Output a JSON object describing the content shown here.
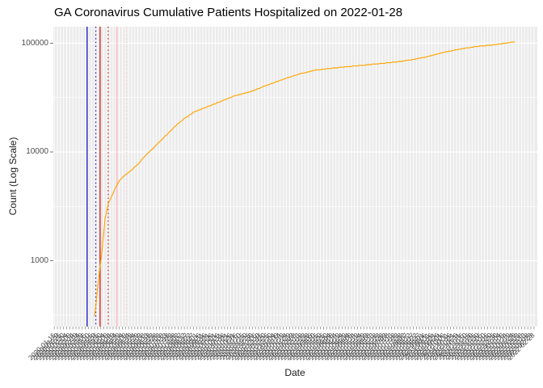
{
  "chart_data": {
    "type": "line",
    "title": "GA Coronavirus Cumulative Patients Hospitalized on 2022-01-28",
    "xlabel": "Date",
    "ylabel": "Count (Log Scale)",
    "y_scale": "log10",
    "y_tick_labels": [
      "1000",
      "10000",
      "100000"
    ],
    "y_tick_values": [
      1000,
      10000,
      100000
    ],
    "y_minor_gridlines": [
      316,
      3162,
      31623
    ],
    "ylim_displayed": [
      240,
      141000
    ],
    "grid": true,
    "legend_position": "none",
    "panel_background": "#EBEBEB",
    "gridline_color": "#FFFFFF",
    "tick_label_color": "#4D4D4D",
    "series": [
      {
        "name": "Cumulative Patients Hospitalized",
        "color": "#FFA500",
        "points": [
          [
            "2020-03-20",
            310
          ],
          [
            "2020-03-23",
            430
          ],
          [
            "2020-03-25",
            560
          ],
          [
            "2020-03-28",
            800
          ],
          [
            "2020-04-01",
            1230
          ],
          [
            "2020-04-04",
            1800
          ],
          [
            "2020-04-06",
            2440
          ],
          [
            "2020-04-09",
            2900
          ],
          [
            "2020-04-11",
            3330
          ],
          [
            "2020-04-17",
            3930
          ],
          [
            "2020-04-23",
            4700
          ],
          [
            "2020-04-30",
            5540
          ],
          [
            "2020-05-09",
            6170
          ],
          [
            "2020-05-19",
            6810
          ],
          [
            "2020-05-31",
            7940
          ],
          [
            "2020-06-10",
            9230
          ],
          [
            "2020-06-21",
            10600
          ],
          [
            "2020-07-03",
            12400
          ],
          [
            "2020-07-16",
            14700
          ],
          [
            "2020-07-29",
            17400
          ],
          [
            "2020-08-12",
            20300
          ],
          [
            "2020-08-28",
            23300
          ],
          [
            "2020-09-16",
            25800
          ],
          [
            "2020-10-06",
            28600
          ],
          [
            "2020-11-01",
            32800
          ],
          [
            "2020-11-27",
            35800
          ],
          [
            "2020-12-23",
            41000
          ],
          [
            "2021-01-18",
            46400
          ],
          [
            "2021-02-14",
            52200
          ],
          [
            "2021-03-12",
            56600
          ],
          [
            "2021-04-07",
            58900
          ],
          [
            "2021-05-03",
            60900
          ],
          [
            "2021-05-29",
            62900
          ],
          [
            "2021-06-24",
            65000
          ],
          [
            "2021-07-20",
            67200
          ],
          [
            "2021-08-15",
            70600
          ],
          [
            "2021-09-10",
            75400
          ],
          [
            "2021-10-06",
            82600
          ],
          [
            "2021-11-02",
            88800
          ],
          [
            "2021-11-28",
            93400
          ],
          [
            "2021-12-24",
            96600
          ],
          [
            "2022-01-12",
            100000
          ],
          [
            "2022-01-28",
            103300
          ]
        ]
      }
    ],
    "event_vlines": [
      {
        "date": "2020-03-08",
        "style": "solid",
        "color": "#2222CC"
      },
      {
        "date": "2020-03-22",
        "style": "dotted",
        "color": "#2222CC"
      },
      {
        "date": "2020-03-29",
        "style": "solid",
        "color": "#D42222"
      },
      {
        "date": "2020-04-11",
        "style": "dotted",
        "color": "#D42222"
      },
      {
        "date": "2020-04-25",
        "style": "solid",
        "color": "#FFB6C1"
      },
      {
        "date": "2020-05-10",
        "style": "dotted",
        "color": "#FFC9D2"
      }
    ],
    "x_tick_labels": [
      "2020-01-15",
      "2020-01-20",
      "2020-01-25",
      "2020-01-30",
      "2020-02-04",
      "2020-02-09",
      "2020-02-14",
      "2020-02-19",
      "2020-02-24",
      "2020-02-29",
      "2020-03-05",
      "2020-03-10",
      "2020-03-15",
      "2020-03-20",
      "2020-03-25",
      "2020-03-30",
      "2020-04-04",
      "2020-04-09",
      "2020-04-14",
      "2020-04-19",
      "2020-04-24",
      "2020-04-29",
      "2020-05-04",
      "2020-05-09",
      "2020-05-14",
      "2020-05-19",
      "2020-05-24",
      "2020-05-29",
      "2020-06-03",
      "2020-06-08",
      "2020-06-13",
      "2020-06-18",
      "2020-06-23",
      "2020-06-28",
      "2020-07-03",
      "2020-07-08",
      "2020-07-13",
      "2020-07-18",
      "2020-07-23",
      "2020-07-28",
      "2020-08-02",
      "2020-08-07",
      "2020-08-12",
      "2020-08-17",
      "2020-08-22",
      "2020-08-27",
      "2020-09-01",
      "2020-09-06",
      "2020-09-11",
      "2020-09-16",
      "2020-09-21",
      "2020-09-26",
      "2020-10-01",
      "2020-10-06",
      "2020-10-11",
      "2020-10-16",
      "2020-10-21",
      "2020-10-26",
      "2020-10-31",
      "2020-11-05",
      "2020-11-10",
      "2020-11-15",
      "2020-11-20",
      "2020-11-25",
      "2020-11-30",
      "2020-12-05",
      "2020-12-10",
      "2020-12-15",
      "2020-12-20",
      "2020-12-25",
      "2020-12-30",
      "2021-01-04",
      "2021-01-09",
      "2021-01-14",
      "2021-01-19",
      "2021-01-24",
      "2021-01-29",
      "2021-02-03",
      "2021-02-08",
      "2021-02-13",
      "2021-02-18",
      "2021-02-23",
      "2021-02-28",
      "2021-03-05",
      "2021-03-10",
      "2021-03-15",
      "2021-03-20",
      "2021-03-25",
      "2021-03-30",
      "2021-04-04",
      "2021-04-09",
      "2021-04-14",
      "2021-04-19",
      "2021-04-24",
      "2021-04-29",
      "2021-05-04",
      "2021-05-09",
      "2021-05-14",
      "2021-05-19",
      "2021-05-24",
      "2021-05-29",
      "2021-06-03",
      "2021-06-08",
      "2021-06-13",
      "2021-06-18",
      "2021-06-23",
      "2021-06-28",
      "2021-07-03",
      "2021-07-08",
      "2021-07-13",
      "2021-07-18",
      "2021-07-23",
      "2021-07-28",
      "2021-08-02",
      "2021-08-07",
      "2021-08-12",
      "2021-08-17",
      "2021-08-22",
      "2021-08-27",
      "2021-09-01",
      "2021-09-06",
      "2021-09-11",
      "2021-09-16",
      "2021-09-21",
      "2021-09-26",
      "2021-10-01",
      "2021-10-06",
      "2021-10-11",
      "2021-10-16",
      "2021-10-21",
      "2021-10-26",
      "2021-10-31",
      "2021-11-05",
      "2021-11-10",
      "2021-11-15",
      "2021-11-20",
      "2021-11-25",
      "2021-11-30",
      "2021-12-05",
      "2021-12-10",
      "2021-12-15",
      "2021-12-20",
      "2021-12-25",
      "2021-12-30",
      "2022-01-04",
      "2022-01-09",
      "2022-01-14",
      "2022-01-19",
      "2022-01-24",
      "2022-01-29",
      "2022-02-03",
      "2022-02-08",
      "2022-02-13",
      "2022-02-18",
      "2022-02-23",
      "2022-02-28"
    ]
  }
}
